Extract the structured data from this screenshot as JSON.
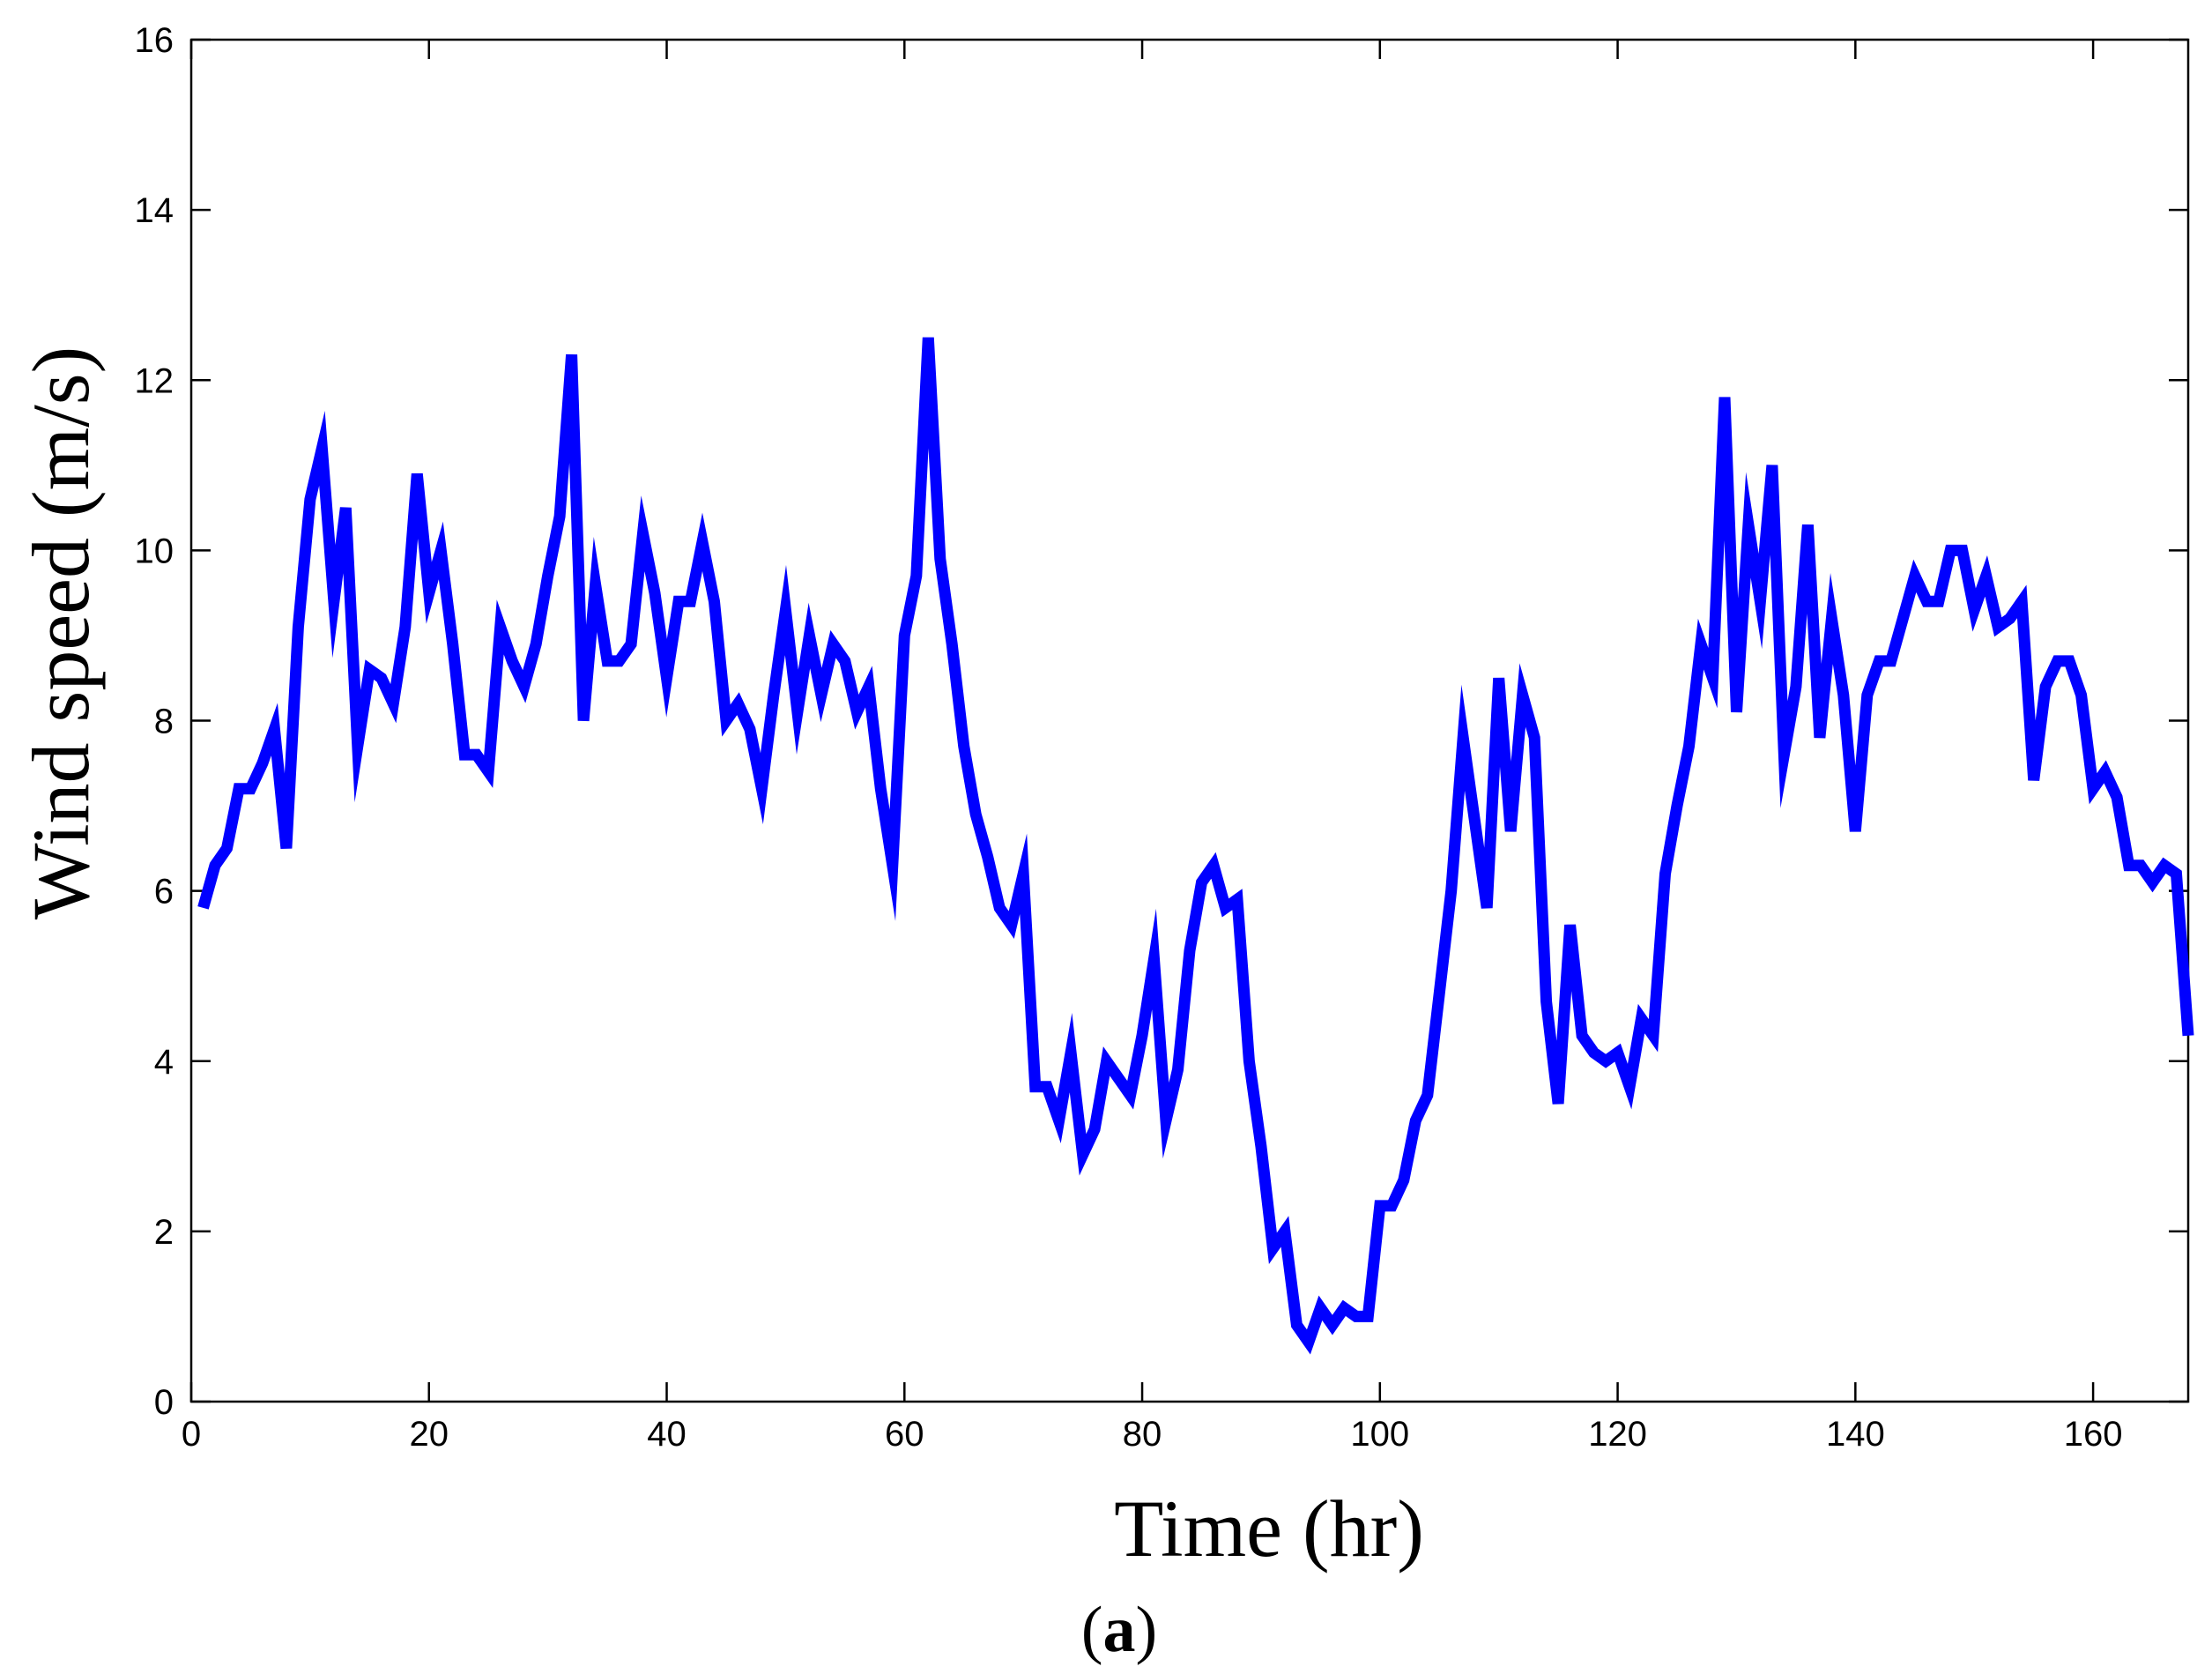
{
  "chart_data": {
    "type": "line",
    "title": "",
    "caption": {
      "open": "(",
      "letter": "a",
      "close": ")"
    },
    "xlabel": "Time (hr)",
    "ylabel": "Wind speed (m/s)",
    "xlim": [
      0,
      168
    ],
    "ylim": [
      0,
      16
    ],
    "xticks": [
      0,
      20,
      40,
      60,
      80,
      100,
      120,
      140,
      160
    ],
    "yticks": [
      0,
      2,
      4,
      6,
      8,
      10,
      12,
      14,
      16
    ],
    "grid": false,
    "legend": "none",
    "line_color": "#0000ff",
    "x": [
      1,
      2,
      3,
      4,
      5,
      6,
      7,
      8,
      9,
      10,
      11,
      12,
      13,
      14,
      15,
      16,
      17,
      18,
      19,
      20,
      21,
      22,
      23,
      24,
      25,
      26,
      27,
      28,
      29,
      30,
      31,
      32,
      33,
      34,
      35,
      36,
      37,
      38,
      39,
      40,
      41,
      42,
      43,
      44,
      45,
      46,
      47,
      48,
      49,
      50,
      51,
      52,
      53,
      54,
      55,
      56,
      57,
      58,
      59,
      60,
      61,
      62,
      63,
      64,
      65,
      66,
      67,
      68,
      69,
      70,
      71,
      72,
      73,
      74,
      75,
      76,
      77,
      78,
      79,
      80,
      81,
      82,
      83,
      84,
      85,
      86,
      87,
      88,
      89,
      90,
      91,
      92,
      93,
      94,
      95,
      96,
      97,
      98,
      99,
      100,
      101,
      102,
      103,
      104,
      105,
      106,
      107,
      108,
      109,
      110,
      111,
      112,
      113,
      114,
      115,
      116,
      117,
      118,
      119,
      120,
      121,
      122,
      123,
      124,
      125,
      126,
      127,
      128,
      129,
      130,
      131,
      132,
      133,
      134,
      135,
      136,
      137,
      138,
      139,
      140,
      141,
      142,
      143,
      144,
      145,
      146,
      147,
      148,
      149,
      150,
      151,
      152,
      153,
      154,
      155,
      156,
      157,
      158,
      159,
      160,
      161,
      162,
      163,
      164,
      165,
      166,
      167,
      168
    ],
    "y": [
      5.8,
      6.3,
      6.5,
      7.2,
      7.2,
      7.5,
      7.9,
      6.5,
      9.1,
      10.6,
      11.2,
      9.4,
      10.5,
      7.7,
      8.6,
      8.5,
      8.2,
      9.1,
      10.9,
      9.5,
      10.0,
      8.9,
      7.6,
      7.6,
      7.4,
      9.1,
      8.7,
      8.4,
      8.9,
      9.7,
      10.4,
      12.3,
      8.0,
      9.6,
      8.7,
      8.7,
      8.9,
      10.2,
      9.5,
      8.5,
      9.4,
      9.4,
      10.1,
      9.4,
      8.0,
      8.2,
      7.9,
      7.2,
      8.3,
      9.3,
      8.1,
      9.0,
      8.3,
      8.9,
      8.7,
      8.1,
      8.4,
      7.2,
      6.3,
      9.0,
      9.7,
      12.5,
      9.9,
      8.9,
      7.7,
      6.9,
      6.4,
      5.8,
      5.6,
      6.2,
      3.7,
      3.7,
      3.3,
      4.1,
      2.9,
      3.2,
      4.0,
      3.8,
      3.6,
      4.3,
      5.2,
      3.3,
      3.9,
      5.3,
      6.1,
      6.3,
      5.8,
      5.9,
      4.0,
      3.0,
      1.8,
      2.0,
      0.9,
      0.7,
      1.1,
      0.9,
      1.1,
      1.0,
      1.0,
      2.3,
      2.3,
      2.6,
      3.3,
      3.6,
      4.8,
      6.0,
      7.8,
      6.8,
      5.8,
      8.5,
      6.7,
      8.3,
      7.8,
      4.7,
      3.5,
      5.6,
      4.3,
      4.1,
      4.0,
      4.1,
      3.7,
      4.5,
      4.3,
      6.2,
      7.0,
      7.7,
      8.9,
      8.5,
      11.8,
      8.1,
      10.3,
      9.4,
      11.0,
      7.6,
      8.4,
      10.3,
      7.8,
      9.2,
      8.3,
      6.7,
      8.3,
      8.7,
      8.7,
      9.2,
      9.7,
      9.4,
      9.4,
      10.0,
      10.0,
      9.3,
      9.7,
      9.1,
      9.2,
      9.4,
      7.3,
      8.4,
      8.7,
      8.7,
      8.3,
      7.2,
      7.4,
      7.1,
      6.3,
      6.3,
      6.1,
      6.3,
      6.2,
      4.3
    ]
  }
}
